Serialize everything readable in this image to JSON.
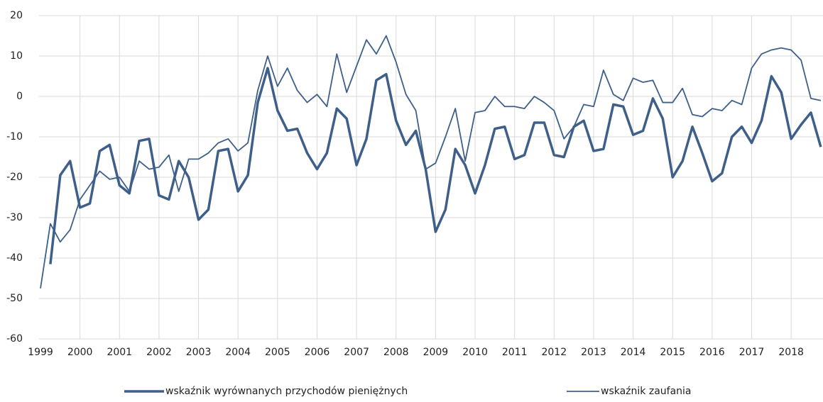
{
  "chart_data": {
    "type": "line",
    "categories": [
      "1999",
      null,
      null,
      null,
      "2000",
      null,
      null,
      null,
      "2001",
      null,
      null,
      null,
      "2002",
      null,
      null,
      null,
      "2003",
      null,
      null,
      null,
      "2004",
      null,
      null,
      null,
      "2005",
      null,
      null,
      null,
      "2006",
      null,
      null,
      null,
      "2007",
      null,
      null,
      null,
      "2008",
      null,
      null,
      null,
      "2009",
      null,
      null,
      null,
      "2010",
      null,
      null,
      null,
      "2011",
      null,
      null,
      null,
      "2012",
      null,
      null,
      null,
      "2013",
      null,
      null,
      null,
      "2014",
      null,
      null,
      null,
      "2015",
      null,
      null,
      null,
      "2016",
      null,
      null,
      null,
      "2017",
      null,
      null,
      null,
      "2018",
      null,
      null,
      null
    ],
    "series": [
      {
        "name": "wskaźnik wyrównanych przychodów pieniężnych",
        "color": "#3e5f8a",
        "width": 3.5,
        "values": [
          null,
          -41.5,
          -19.5,
          -16,
          -27.5,
          -26.5,
          -13.5,
          -12,
          -22,
          -24,
          -11,
          -10.5,
          -24.5,
          -25.5,
          -16,
          -20,
          -30.5,
          -28,
          -13.5,
          -13,
          -23.5,
          -19.5,
          -1.5,
          7,
          -3.5,
          -8.5,
          -8,
          -14,
          -18,
          -14,
          -3,
          -5.5,
          -17,
          -10.5,
          4,
          5.5,
          -6,
          -12,
          -8.5,
          -18,
          -33.5,
          -28,
          -13,
          -17,
          -24,
          -17,
          -8,
          -7.5,
          -15.5,
          -14.5,
          -6.5,
          -6.5,
          -14.5,
          -15,
          -7.5,
          -6,
          -13.5,
          -13,
          -2,
          -2.5,
          -9.5,
          -8.5,
          -0.5,
          -5.5,
          -20,
          -16,
          -7.5,
          -14,
          -21,
          -19,
          -10,
          -7.5,
          -11.5,
          -6,
          5,
          1,
          -10.5,
          -7,
          -4,
          -12.5
        ]
      },
      {
        "name": "wskaźnik zaufania",
        "color": "#3e5f8a",
        "width": 1.8,
        "values": [
          -47.5,
          -31.5,
          -36,
          -33,
          -25.5,
          -22,
          -18.5,
          -20.5,
          -20,
          -23.5,
          -16,
          -18,
          -17.5,
          -14.5,
          -23.5,
          -15.5,
          -15.5,
          -14,
          -11.5,
          -10.5,
          -13.5,
          -11.5,
          1.5,
          10,
          2.5,
          7,
          1.5,
          -1.5,
          0.5,
          -2.5,
          10.5,
          1,
          7.5,
          14,
          10.5,
          15,
          8.5,
          0.5,
          -3.5,
          -18,
          -16.5,
          -10,
          -3,
          -16,
          -4,
          -3.5,
          0,
          -2.5,
          -2.5,
          -3,
          0,
          -1.5,
          -3.5,
          -10.5,
          -7.5,
          -2,
          -2.5,
          6.5,
          0.5,
          -1,
          4.5,
          3.5,
          4,
          -1.5,
          -1.5,
          2,
          -4.5,
          -5,
          -3,
          -3.5,
          -1,
          -2,
          7,
          10.5,
          11.5,
          12,
          11.5,
          9,
          -0.5,
          -1
        ]
      }
    ],
    "ylim": [
      -60,
      20
    ],
    "yticks": [
      -60,
      -50,
      -40,
      -30,
      -20,
      -10,
      0,
      10,
      20
    ],
    "grid": true
  }
}
